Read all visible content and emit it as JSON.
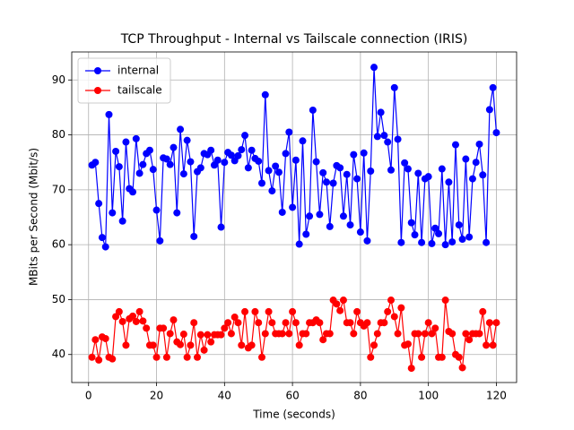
{
  "chart_data": {
    "type": "line",
    "title": "TCP Throughput - Internal vs Tailscale connection (IRIS)",
    "xlabel": "Time (seconds)",
    "ylabel": "MBits per Second (Mbit/s)",
    "x": [
      1,
      2,
      3,
      4,
      5,
      6,
      7,
      8,
      9,
      10,
      11,
      12,
      13,
      14,
      15,
      16,
      17,
      18,
      19,
      20,
      21,
      22,
      23,
      24,
      25,
      26,
      27,
      28,
      29,
      30,
      31,
      32,
      33,
      34,
      35,
      36,
      37,
      38,
      39,
      40,
      41,
      42,
      43,
      44,
      45,
      46,
      47,
      48,
      49,
      50,
      51,
      52,
      53,
      54,
      55,
      56,
      57,
      58,
      59,
      60,
      61,
      62,
      63,
      64,
      65,
      66,
      67,
      68,
      69,
      70,
      71,
      72,
      73,
      74,
      75,
      76,
      77,
      78,
      79,
      80,
      81,
      82,
      83,
      84,
      85,
      86,
      87,
      88,
      89,
      90,
      91,
      92,
      93,
      94,
      95,
      96,
      97,
      98,
      99,
      100,
      101,
      102,
      103,
      104,
      105,
      106,
      107,
      108,
      109,
      110,
      111,
      112,
      113,
      114,
      115,
      116,
      117,
      118,
      119,
      120
    ],
    "series": [
      {
        "name": "internal",
        "color": "#0000ff",
        "values": [
          74.5,
          75,
          67.5,
          61.3,
          59.6,
          83.7,
          65.8,
          77,
          74.2,
          64.3,
          78.7,
          70.2,
          69.6,
          79.3,
          73,
          74.6,
          76.6,
          77.2,
          73.7,
          66.3,
          60.7,
          75.8,
          75.6,
          74.6,
          77.7,
          65.8,
          81,
          72.9,
          79,
          75.1,
          61.5,
          73.3,
          74,
          76.6,
          76.4,
          77.2,
          74.5,
          75.4,
          63.2,
          75,
          76.8,
          76.3,
          75.3,
          76.2,
          77.3,
          79.9,
          74,
          77.2,
          75.7,
          75.2,
          71.2,
          87.3,
          73.5,
          69.8,
          74.3,
          73.2,
          65.9,
          76.6,
          80.5,
          66.8,
          75.4,
          60.1,
          78.9,
          61.9,
          65.2,
          84.5,
          75.1,
          65.5,
          73.1,
          71.4,
          63.3,
          71.2,
          74.4,
          74,
          65.2,
          72.8,
          63.6,
          76.4,
          72,
          62.3,
          76.7,
          60.7,
          73.4,
          92.3,
          79.7,
          84.1,
          79.9,
          78.7,
          73.6,
          88.6,
          79.2,
          60.4,
          74.9,
          73.8,
          64,
          61.8,
          73,
          60.4,
          72,
          72.4,
          60.2,
          63,
          62,
          73.8,
          60,
          71.4,
          60.5,
          78.2,
          63.6,
          61,
          75.6,
          61.4,
          72,
          75,
          78.3,
          72.7,
          60.4,
          84.6,
          88.6,
          80.4
        ]
      },
      {
        "name": "tailscale",
        "color": "#ff0000",
        "values": [
          39.5,
          42.7,
          39,
          43.2,
          42.9,
          39.5,
          39.2,
          46.9,
          47.8,
          46,
          41.7,
          46.5,
          47,
          46,
          47.8,
          46.1,
          44.8,
          41.7,
          41.7,
          39.5,
          44.8,
          44.8,
          39.5,
          43.8,
          46.3,
          42.3,
          41.8,
          43.7,
          39.5,
          41.7,
          45.8,
          39.5,
          43.6,
          40.8,
          43.6,
          42.3,
          43.6,
          43.6,
          43.6,
          44.8,
          45.8,
          43.8,
          46.8,
          45.8,
          41.7,
          47.8,
          41.2,
          41.7,
          47.8,
          45.8,
          39.5,
          43.8,
          47.8,
          45.8,
          43.8,
          43.8,
          43.8,
          45.8,
          43.8,
          47.8,
          45.8,
          41.7,
          43.8,
          43.8,
          45.8,
          45.8,
          46.3,
          45.8,
          42.7,
          43.8,
          43.8,
          49.9,
          49.2,
          48,
          49.9,
          45.8,
          45.8,
          43.8,
          47.8,
          45.8,
          45.2,
          45.8,
          39.5,
          41.7,
          43.8,
          45.8,
          45.8,
          47.8,
          49.9,
          46.9,
          43.8,
          48.5,
          41.7,
          41.9,
          37.5,
          43.8,
          43.8,
          39.5,
          43.8,
          45.8,
          43.8,
          44.8,
          39.5,
          39.5,
          49.9,
          44.2,
          43.8,
          40,
          39.5,
          37.6,
          43.8,
          42.7,
          43.8,
          43.8,
          43.8,
          47.8,
          41.7,
          45.8,
          41.7,
          45.8
        ]
      }
    ],
    "xlim": [
      -4.95,
      125.95
    ],
    "ylim": [
      34.9,
      95.1
    ],
    "xticks": [
      0,
      20,
      40,
      60,
      80,
      100,
      120
    ],
    "yticks": [
      40,
      50,
      60,
      70,
      80,
      90
    ],
    "grid": true,
    "legend": "upper left"
  }
}
